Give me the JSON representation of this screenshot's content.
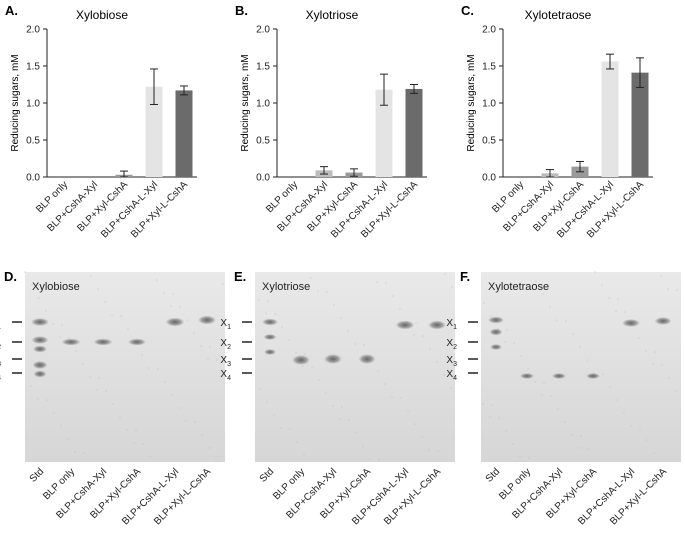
{
  "figure": {
    "panels_top": [
      {
        "letter": "A.",
        "title": "Xylobiose"
      },
      {
        "letter": "B.",
        "title": "Xylotriose"
      },
      {
        "letter": "C.",
        "title": "Xylotetraose"
      }
    ],
    "panels_bottom": [
      {
        "letter": "D.",
        "title": "Xylobiose"
      },
      {
        "letter": "E.",
        "title": "Xylotriose"
      },
      {
        "letter": "F.",
        "title": "Xylotetraose"
      }
    ],
    "gel_lanes": [
      "Std",
      "BLP only",
      "BLP+CshA-Xyl",
      "BLP+Xyl-CshA",
      "BLP+CshA-L-Xyl",
      "BLP+Xyl-L-CshA"
    ],
    "markers": [
      {
        "main": "X",
        "sub": "1"
      },
      {
        "main": "X",
        "sub": "2"
      },
      {
        "main": "X",
        "sub": "3"
      },
      {
        "main": "X",
        "sub": "4"
      }
    ],
    "bar_colors": [
      "#c8c8c8",
      "#bdbdbd",
      "#9a9a9a",
      "#e4e4e4",
      "#6b6b6b"
    ]
  },
  "chart_data": [
    {
      "type": "bar",
      "title": "Xylobiose",
      "ylabel": "Reducing sugars, mM",
      "categories": [
        "BLP only",
        "BLP+CshA-Xyl",
        "BLP+Xyl-CshA",
        "BLP+CshA-L-Xyl",
        "BLP+Xyl-L-CshA"
      ],
      "values": [
        0.0,
        0.0,
        0.03,
        1.22,
        1.17
      ],
      "errors": [
        0.0,
        0.0,
        0.05,
        0.24,
        0.06
      ],
      "ylim": [
        0,
        2.0
      ],
      "yticks": [
        "0.0",
        "0.5",
        "1.0",
        "1.5",
        "2.0"
      ]
    },
    {
      "type": "bar",
      "title": "Xylotriose",
      "ylabel": "Reducing sugars, mM",
      "categories": [
        "BLP only",
        "BLP+CshA-Xyl",
        "BLP+Xyl-CshA",
        "BLP+CshA-L-Xyl",
        "BLP+Xyl-L-CshA"
      ],
      "values": [
        0.0,
        0.09,
        0.06,
        1.18,
        1.19
      ],
      "errors": [
        0.0,
        0.05,
        0.05,
        0.21,
        0.06
      ],
      "ylim": [
        0,
        2.0
      ],
      "yticks": [
        "0.0",
        "0.5",
        "1.0",
        "1.5",
        "2.0"
      ]
    },
    {
      "type": "bar",
      "title": "Xylotetraose",
      "ylabel": "Reducing sugars, mM",
      "categories": [
        "BLP only",
        "BLP+CshA-Xyl",
        "BLP+Xyl-CshA",
        "BLP+CshA-L-Xyl",
        "BLP+Xyl-L-CshA"
      ],
      "values": [
        0.0,
        0.05,
        0.14,
        1.56,
        1.41
      ],
      "errors": [
        0.0,
        0.05,
        0.07,
        0.1,
        0.2
      ],
      "ylim": [
        0,
        2.0
      ],
      "yticks": [
        "0.0",
        "0.5",
        "1.0",
        "1.5",
        "2.0"
      ]
    }
  ]
}
